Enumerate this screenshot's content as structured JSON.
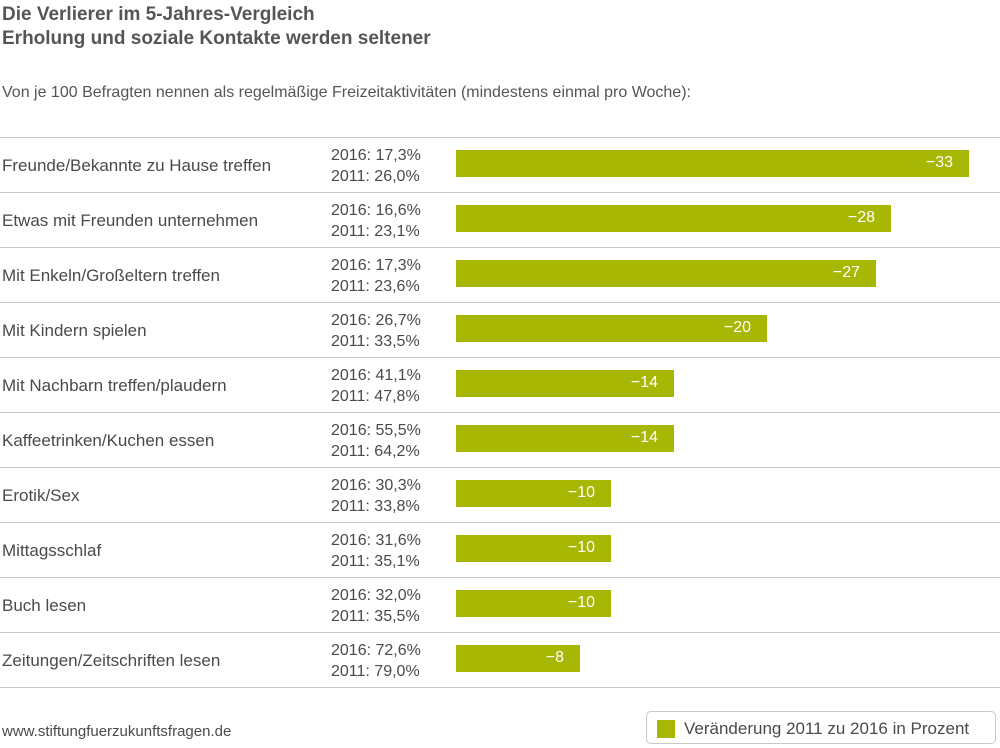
{
  "header": {
    "title_line1": "Die Verlierer im 5-Jahres-Vergleich",
    "title_line2": "Erholung und soziale Kontakte werden seltener",
    "subtitle": "Von je 100 Befragten nennen als regelmäßige Freizeitaktivitäten (mindestens einmal pro Woche):"
  },
  "chart_data": {
    "type": "bar",
    "orientation": "horizontal",
    "categories": [
      "Freunde/Bekannte zu Hause treffen",
      "Etwas mit Freunden unternehmen",
      "Mit Enkeln/Großeltern treffen",
      "Mit Kindern spielen",
      "Mit Nachbarn treffen/plaudern",
      "Kaffeetrinken/Kuchen essen",
      "Erotik/Sex",
      "Mittagsschlaf",
      "Buch lesen",
      "Zeitungen/Zeitschriften lesen"
    ],
    "values_2016": [
      "2016: 17,3%",
      "2016: 16,6%",
      "2016: 17,3%",
      "2016: 26,7%",
      "2016: 41,1%",
      "2016: 55,5%",
      "2016: 30,3%",
      "2016: 31,6%",
      "2016: 32,0%",
      "2016: 72,6%"
    ],
    "values_2011": [
      "2011: 26,0%",
      "2011: 23,1%",
      "2011: 23,6%",
      "2011: 33,5%",
      "2011: 47,8%",
      "2011: 64,2%",
      "2011: 33,8%",
      "2011: 35,1%",
      "2011: 35,5%",
      "2011: 79,0%"
    ],
    "series": [
      {
        "name": "Veränderung 2011 zu 2016 in Prozent",
        "values": [
          -33,
          -28,
          -27,
          -20,
          -14,
          -14,
          -10,
          -10,
          -10,
          -8
        ],
        "labels": [
          "−33",
          "−28",
          "−27",
          "−20",
          "−14",
          "−14",
          "−10",
          "−10",
          "−10",
          "−8"
        ],
        "color": "#a7b704"
      }
    ],
    "xlim": [
      0,
      -33
    ],
    "legend_position": "bottom-right",
    "grid": false
  },
  "footer": {
    "source": "www.stiftungfuerzukunftsfragen.de",
    "legend_label": "Veränderung 2011 zu 2016 in Prozent"
  }
}
